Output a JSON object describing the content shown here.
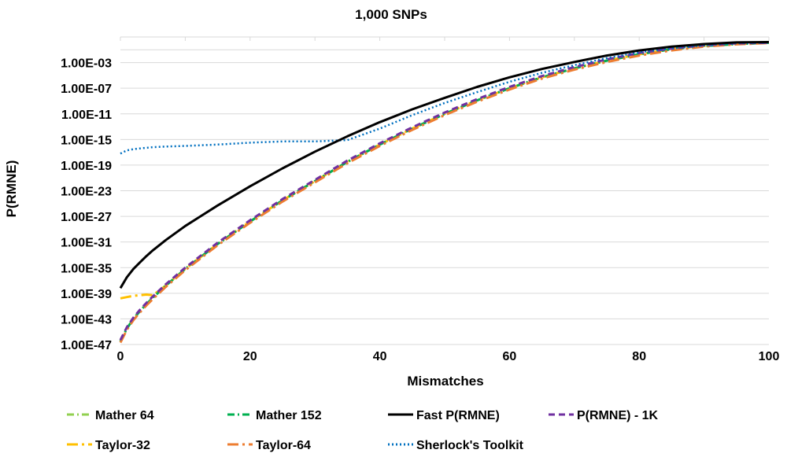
{
  "chart_data": {
    "type": "line",
    "title": "1,000 SNPs",
    "xlabel": "Mismatches",
    "ylabel": "P(RMNE)",
    "y_scale": "log10",
    "xlim": [
      0,
      100
    ],
    "ylim_log10": [
      -47,
      1
    ],
    "x_ticks": [
      0,
      20,
      40,
      60,
      80,
      100
    ],
    "x_tick_labels": [
      "0",
      "20",
      "40",
      "60",
      "80",
      "100"
    ],
    "y_ticks_log10": [
      -47,
      -43,
      -39,
      -35,
      -31,
      -27,
      -23,
      -19,
      -15,
      -11,
      -7,
      -3
    ],
    "y_tick_labels": [
      "1.00E-47",
      "1.00E-43",
      "1.00E-39",
      "1.00E-35",
      "1.00E-31",
      "1.00E-27",
      "1.00E-23",
      "1.00E-19",
      "1.00E-15",
      "1.00E-11",
      "1.00E-07",
      "1.00E-03"
    ],
    "grid": "horizontal-major",
    "legend_position": "bottom",
    "x": [
      0,
      1,
      2,
      3,
      4,
      5,
      7,
      10,
      15,
      20,
      25,
      30,
      35,
      40,
      45,
      50,
      55,
      60,
      65,
      70,
      75,
      80,
      85,
      90,
      95,
      100
    ],
    "series": [
      {
        "name": "Mather 64",
        "color": "#92D050",
        "style": "dash-dot",
        "values_log10": [
          -46.5,
          -44.5,
          -43,
          -41.8,
          -40.7,
          -39.7,
          -37.8,
          -35.2,
          -31.3,
          -27.8,
          -24.5,
          -21.5,
          -18.5,
          -15.8,
          -13.3,
          -11,
          -8.9,
          -7,
          -5.3,
          -3.9,
          -2.7,
          -1.7,
          -0.9,
          -0.4,
          -0.1,
          0.1
        ]
      },
      {
        "name": "Mather 152",
        "color": "#00B050",
        "style": "dash-dot",
        "values_log10": [
          -46.5,
          -44.5,
          -43,
          -41.8,
          -40.7,
          -39.7,
          -37.8,
          -35.2,
          -31.3,
          -27.8,
          -24.5,
          -21.5,
          -18.5,
          -15.8,
          -13.3,
          -11,
          -8.9,
          -7,
          -5.3,
          -3.9,
          -2.7,
          -1.7,
          -0.9,
          -0.4,
          -0.1,
          0.1
        ]
      },
      {
        "name": "Fast P(RMNE)",
        "color": "#000000",
        "style": "solid",
        "values_log10": [
          -38.2,
          -36.5,
          -35.2,
          -34.2,
          -33.2,
          -32.3,
          -30.7,
          -28.5,
          -25.3,
          -22.3,
          -19.5,
          -16.9,
          -14.5,
          -12.3,
          -10.3,
          -8.5,
          -6.8,
          -5.3,
          -4,
          -2.9,
          -1.9,
          -1.1,
          -0.5,
          -0.1,
          0.15,
          0.2
        ]
      },
      {
        "name": "P(RMNE) - 1K",
        "color": "#7030A0",
        "style": "dash",
        "values_log10": [
          -46.3,
          -44.3,
          -42.8,
          -41.6,
          -40.5,
          -39.5,
          -37.6,
          -35,
          -31.1,
          -27.6,
          -24.3,
          -21.3,
          -18.3,
          -15.6,
          -13.1,
          -10.8,
          -8.7,
          -6.8,
          -5.1,
          -3.7,
          -2.5,
          -1.5,
          -0.8,
          -0.3,
          0,
          0.1
        ]
      },
      {
        "name": "Taylor-32",
        "color": "#FFC000",
        "style": "long-dash-dot",
        "values_log10": [
          -39.8,
          -39.6,
          -39.4,
          -39.3,
          -39.2,
          -39.3,
          -37.8,
          -35.2,
          -31.3,
          -27.8,
          -24.5,
          -21.5,
          -18.5,
          -15.8,
          -13.3,
          -11,
          -8.9,
          -7,
          -5.3,
          -3.9,
          -2.7,
          -1.7,
          -0.9,
          -0.4,
          -0.1,
          0.1
        ]
      },
      {
        "name": "Taylor-64",
        "color": "#ED7D31",
        "style": "long-dash-dot",
        "values_log10": [
          -46.7,
          -44.7,
          -43.2,
          -42,
          -40.9,
          -39.9,
          -38,
          -35.4,
          -31.5,
          -28,
          -24.7,
          -21.7,
          -18.7,
          -16,
          -13.5,
          -11.2,
          -9.1,
          -7.2,
          -5.5,
          -4.1,
          -2.9,
          -1.9,
          -1.1,
          -0.5,
          -0.15,
          0.05
        ]
      },
      {
        "name": "Sherlock's Toolkit",
        "color": "#0070C0",
        "style": "dot",
        "values_log10": [
          -17.2,
          -16.7,
          -16.5,
          -16.4,
          -16.3,
          -16.2,
          -16.1,
          -16,
          -15.8,
          -15.5,
          -15.3,
          -15.3,
          -15.1,
          -13.3,
          -11.2,
          -9.3,
          -7.6,
          -6,
          -4.6,
          -3.4,
          -2.3,
          -1.4,
          -0.8,
          -0.3,
          0,
          0.1
        ]
      }
    ]
  }
}
